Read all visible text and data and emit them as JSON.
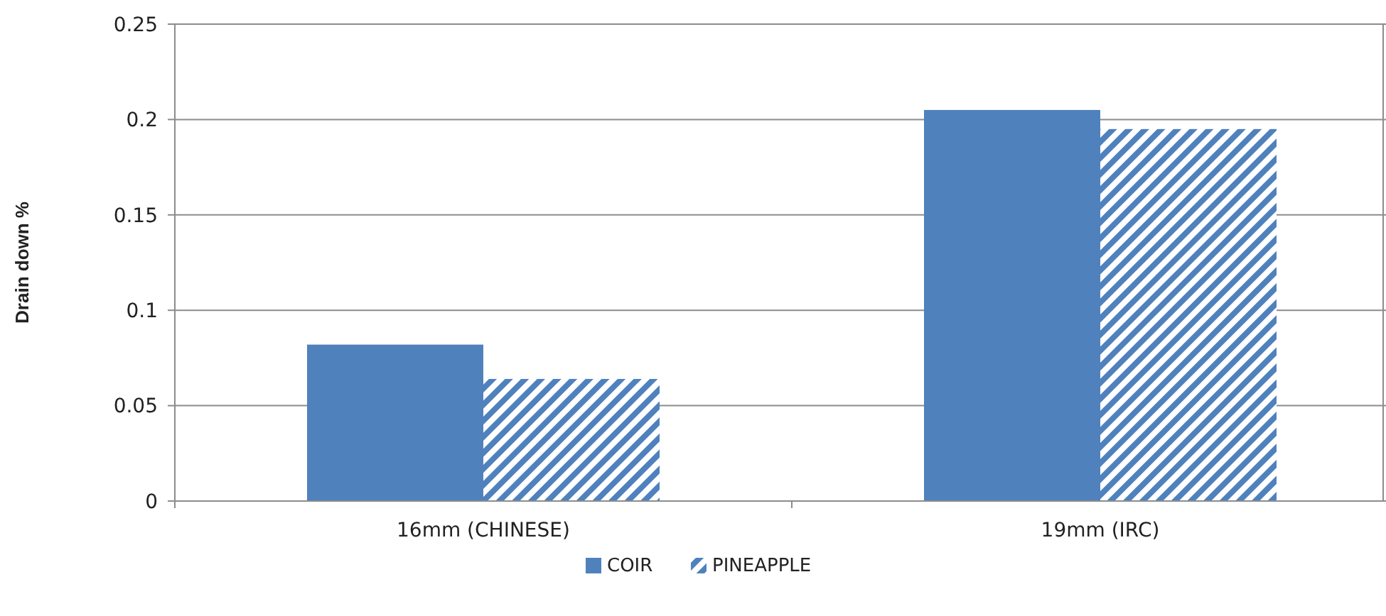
{
  "chart_data": {
    "type": "bar",
    "ylabel": "Drain down %",
    "categories": [
      "16mm (CHINESE)",
      "19mm (IRC)"
    ],
    "series": [
      {
        "name": "COIR",
        "color": "#4f81bd",
        "values": [
          0.082,
          0.205
        ]
      },
      {
        "name": "PINEAPPLE",
        "color": "#4f81bd",
        "values": [
          0.064,
          0.195
        ]
      }
    ],
    "ylim": [
      0,
      0.25
    ],
    "yticks": [
      0,
      0.05,
      0.1,
      0.15,
      0.2,
      0.25
    ],
    "grid": "y",
    "legend": "bottom"
  }
}
